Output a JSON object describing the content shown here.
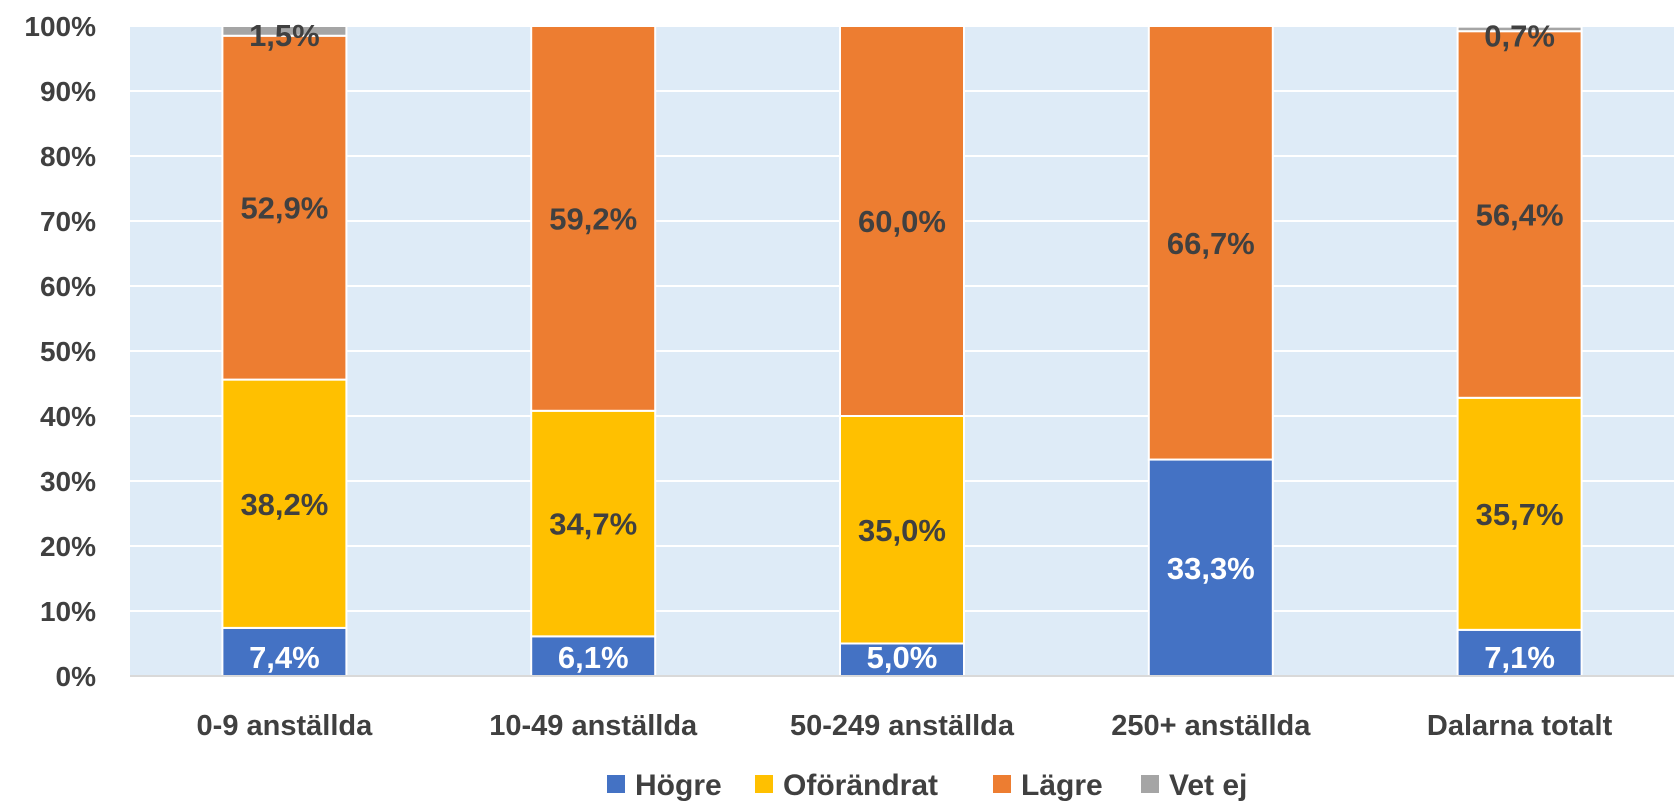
{
  "chart_data": {
    "type": "bar",
    "stacked": true,
    "categories": [
      "0-9 anställda",
      "10-49 anställda",
      "50-249 anställda",
      "250+ anställda",
      "Dalarna totalt"
    ],
    "series": [
      {
        "name": "Högre",
        "color": "#4472C4",
        "values": [
          7.4,
          6.1,
          5.0,
          33.3,
          7.1
        ],
        "labels": [
          "7,4%",
          "6,1%",
          "5,0%",
          "33,3%",
          "7,1%"
        ]
      },
      {
        "name": "Oförändrat",
        "color": "#FFC000",
        "values": [
          38.2,
          34.7,
          35.0,
          0,
          35.7
        ],
        "labels": [
          "38,2%",
          "34,7%",
          "35,0%",
          "",
          "35,7%"
        ]
      },
      {
        "name": "Lägre",
        "color": "#ED7D31",
        "values": [
          52.9,
          59.2,
          60.0,
          66.7,
          56.4
        ],
        "labels": [
          "52,9%",
          "59,2%",
          "60,0%",
          "66,7%",
          "56,4%"
        ]
      },
      {
        "name": "Vet ej",
        "color": "#A5A5A5",
        "values": [
          1.5,
          0,
          0,
          0,
          0.7
        ],
        "labels": [
          "1,5%",
          "",
          "",
          "",
          "0,7%"
        ]
      }
    ],
    "ylim": [
      0,
      100
    ],
    "yticks": [
      "0%",
      "10%",
      "20%",
      "30%",
      "40%",
      "50%",
      "60%",
      "70%",
      "80%",
      "90%",
      "100%"
    ],
    "grid": true,
    "legend": "bottom",
    "plot_background": "#DEEBF7"
  }
}
